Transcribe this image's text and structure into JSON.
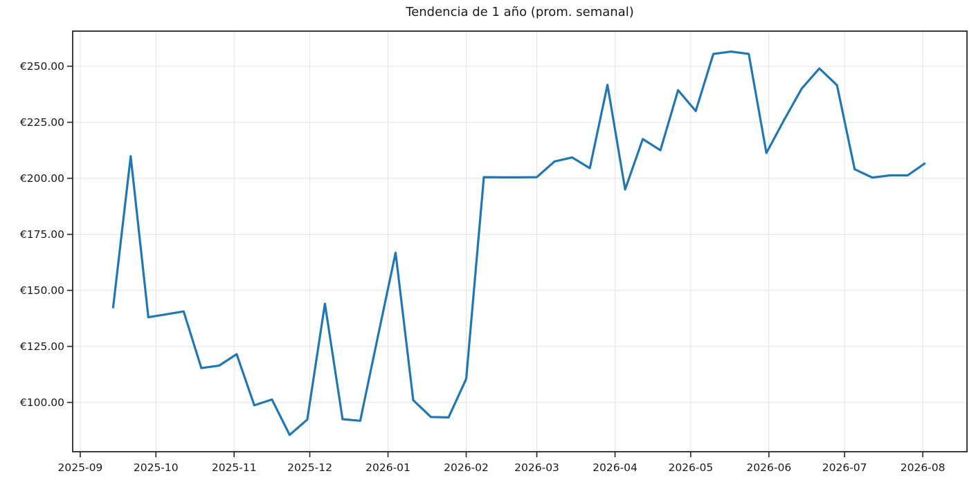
{
  "page": {
    "background_color": "#ffffff"
  },
  "chart": {
    "title": "Tendencia de 1 año (prom. semanal)",
    "line_color": "#1f77b4",
    "grid_color": "#e4e4e4",
    "spine_color": "#262626",
    "text_color": "#1a1a1a",
    "line_width": 3.2
  },
  "chart_data": {
    "type": "line",
    "title": "Tendencia de 1 año (prom. semanal)",
    "xlabel": "",
    "ylabel": "",
    "grid": true,
    "legend": false,
    "currency": "EUR",
    "ylim": [
      77,
      266
    ],
    "x_tick_labels": [
      "2025-09",
      "2025-10",
      "2025-11",
      "2025-12",
      "2026-01",
      "2026-02",
      "2026-03",
      "2026-04",
      "2026-05",
      "2026-06",
      "2026-07",
      "2026-08"
    ],
    "y_tick_values": [
      100,
      125,
      150,
      175,
      200,
      225,
      250
    ],
    "y_tick_labels": [
      "€100.00",
      "€125.00",
      "€150.00",
      "€175.00",
      "€200.00",
      "€225.00",
      "€250.00"
    ],
    "x": [
      "2025-09-14",
      "2025-09-21",
      "2025-09-28",
      "2025-10-05",
      "2025-10-12",
      "2025-10-19",
      "2025-10-26",
      "2025-11-02",
      "2025-11-09",
      "2025-11-16",
      "2025-11-23",
      "2025-11-30",
      "2025-12-07",
      "2025-12-14",
      "2025-12-21",
      "2025-12-28",
      "2026-01-04",
      "2026-01-11",
      "2026-01-18",
      "2026-01-25",
      "2026-02-01",
      "2026-02-08",
      "2026-02-15",
      "2026-02-22",
      "2026-03-01",
      "2026-03-08",
      "2026-03-15",
      "2026-03-22",
      "2026-03-29",
      "2026-04-05",
      "2026-04-12",
      "2026-04-19",
      "2026-04-26",
      "2026-05-03",
      "2026-05-10",
      "2026-05-17",
      "2026-05-24",
      "2026-05-31",
      "2026-06-07",
      "2026-06-14",
      "2026-06-21",
      "2026-06-28",
      "2026-07-05",
      "2026-07-12",
      "2026-07-19",
      "2026-07-26",
      "2026-08-02"
    ],
    "values": [
      142.0,
      209.8,
      138.0,
      139.3,
      140.6,
      115.3,
      116.4,
      121.5,
      98.7,
      101.3,
      85.5,
      92.3,
      144.0,
      92.5,
      91.8,
      129.5,
      166.8,
      101.0,
      93.5,
      93.3,
      110.5,
      200.5,
      200.4,
      200.4,
      200.5,
      207.5,
      209.3,
      204.5,
      241.7,
      195.0,
      217.5,
      212.5,
      239.3,
      230.0,
      255.5,
      256.5,
      255.5,
      211.3,
      226.0,
      240.0,
      249.0,
      241.5,
      204.0,
      200.3,
      201.3,
      201.3,
      206.8
    ]
  }
}
